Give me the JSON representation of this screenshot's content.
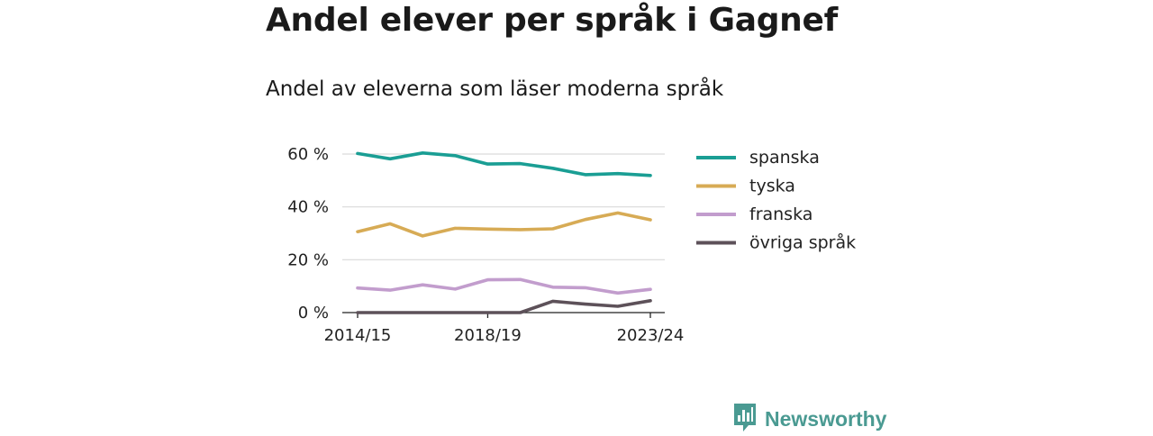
{
  "header": {
    "title": "Andel elever per språk i Gagnef",
    "subtitle": "Andel av eleverna som läser moderna språk"
  },
  "chart_data": {
    "type": "line",
    "x": [
      "2014/15",
      "2015/16",
      "2016/17",
      "2017/18",
      "2018/19",
      "2019/20",
      "2020/21",
      "2021/22",
      "2022/23",
      "2023/24"
    ],
    "x_tick_labels": [
      "2014/15",
      "2018/19",
      "2023/24"
    ],
    "ylim": [
      0,
      60
    ],
    "y_ticks": [
      0,
      20,
      40,
      60
    ],
    "y_tick_labels": [
      "0 %",
      "20 %",
      "40 %",
      "60 %"
    ],
    "grid": true,
    "legend_position": "right",
    "series": [
      {
        "name": "spanska",
        "color": "#1a9e94",
        "values": [
          60.2,
          58.2,
          60.4,
          59.4,
          56.2,
          56.4,
          54.6,
          52.2,
          52.6,
          51.9
        ]
      },
      {
        "name": "tyska",
        "color": "#d7ab55",
        "values": [
          30.6,
          33.6,
          29.0,
          31.9,
          31.6,
          31.4,
          31.7,
          35.2,
          37.7,
          35.1
        ]
      },
      {
        "name": "franska",
        "color": "#c29dcd",
        "values": [
          9.3,
          8.5,
          10.5,
          8.9,
          12.4,
          12.5,
          9.6,
          9.4,
          7.4,
          8.8
        ]
      },
      {
        "name": "övriga språk",
        "color": "#5d5159",
        "values": [
          0,
          0,
          0,
          0,
          0,
          0,
          4.3,
          3.2,
          2.4,
          4.5
        ]
      }
    ]
  },
  "branding": {
    "name": "Newsworthy",
    "icon": "chart-speech-bubble-icon",
    "color": "#4a9a92"
  }
}
